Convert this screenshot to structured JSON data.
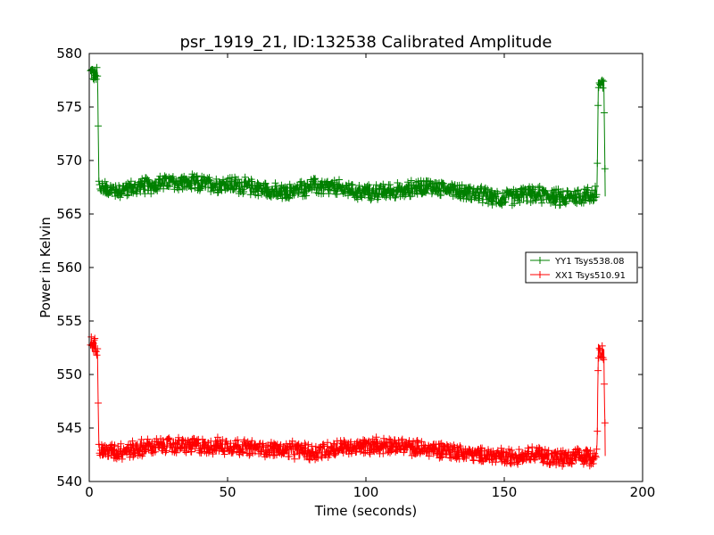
{
  "chart_data": {
    "type": "line",
    "title": "psr_1919_21, ID:132538 Calibrated Amplitude",
    "xlabel": "Time (seconds)",
    "ylabel": "Power in Kelvin",
    "xlim": [
      0,
      200
    ],
    "ylim": [
      540,
      580
    ],
    "xticks": [
      0,
      50,
      100,
      150,
      200
    ],
    "yticks": [
      540,
      545,
      550,
      555,
      560,
      565,
      570,
      575,
      580
    ],
    "grid": false,
    "legend_position": "right",
    "marker": "plus",
    "series": [
      {
        "name": "YY1 Tsys538.08",
        "color": "#008000",
        "baseline_points": [
          [
            0.5,
            578.2
          ],
          [
            3.0,
            578.0
          ],
          [
            3.5,
            567.5
          ],
          [
            10,
            567.2
          ],
          [
            20,
            567.6
          ],
          [
            30,
            568.0
          ],
          [
            40,
            567.8
          ],
          [
            50,
            567.8
          ],
          [
            60,
            567.5
          ],
          [
            70,
            566.9
          ],
          [
            80,
            567.6
          ],
          [
            90,
            567.4
          ],
          [
            100,
            567.0
          ],
          [
            110,
            567.1
          ],
          [
            120,
            567.5
          ],
          [
            130,
            567.4
          ],
          [
            140,
            566.8
          ],
          [
            150,
            566.5
          ],
          [
            160,
            566.9
          ],
          [
            170,
            566.5
          ],
          [
            182,
            566.8
          ],
          [
            183.5,
            567.0
          ],
          [
            184.0,
            577.2
          ],
          [
            186.0,
            577.0
          ],
          [
            186.5,
            567.0
          ]
        ],
        "noise_amplitude": 0.9
      },
      {
        "name": "XX1 Tsys510.91",
        "color": "#ff0000",
        "baseline_points": [
          [
            0.5,
            552.8
          ],
          [
            3.0,
            552.5
          ],
          [
            3.5,
            543.0
          ],
          [
            10,
            542.8
          ],
          [
            20,
            543.2
          ],
          [
            30,
            543.4
          ],
          [
            40,
            543.3
          ],
          [
            50,
            543.3
          ],
          [
            60,
            543.1
          ],
          [
            70,
            543.0
          ],
          [
            80,
            542.7
          ],
          [
            90,
            543.1
          ],
          [
            100,
            543.3
          ],
          [
            110,
            543.4
          ],
          [
            120,
            543.0
          ],
          [
            130,
            542.9
          ],
          [
            140,
            542.5
          ],
          [
            150,
            542.3
          ],
          [
            160,
            542.6
          ],
          [
            170,
            542.1
          ],
          [
            182,
            542.3
          ],
          [
            183.5,
            542.5
          ],
          [
            184.0,
            552.3
          ],
          [
            186.0,
            552.0
          ],
          [
            186.5,
            543.0
          ]
        ],
        "noise_amplitude": 0.9
      }
    ]
  }
}
